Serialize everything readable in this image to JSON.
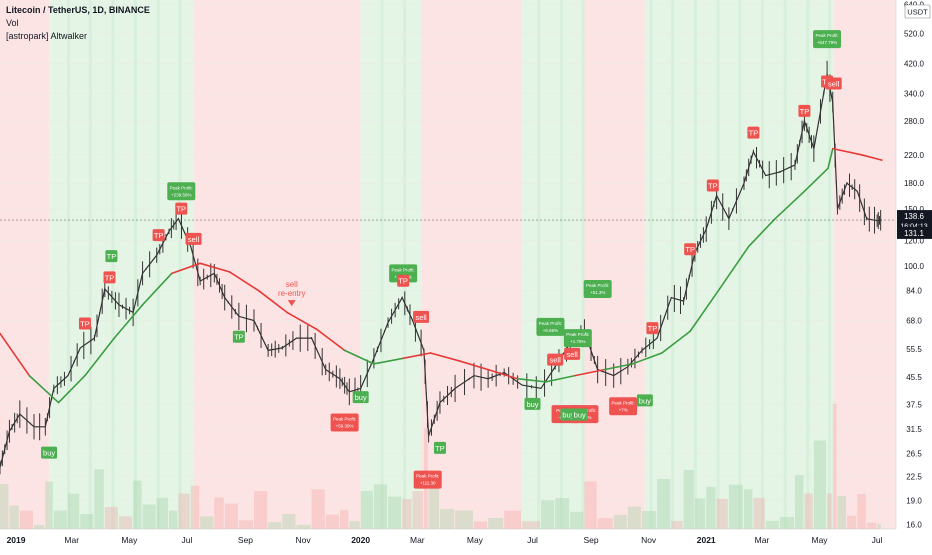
{
  "legend": {
    "symbol": "Litecoin / TetherUS, 1D, BINANCE",
    "indicator1": "Vol",
    "indicator2": "[astropark] Altwalker"
  },
  "price_scale": {
    "currency": "USDT",
    "top_label": "640.0",
    "current_price": "138.6",
    "countdown": "16:04:13",
    "secondary_price": "131.1"
  },
  "colors": {
    "background_bull": "#e4f5e6",
    "background_bear": "#fde4e4",
    "ma_bull": "#3a9e40",
    "ma_bear": "#e53935",
    "candles": "#333333",
    "label_green": "#4caf50",
    "label_red": "#ef5350"
  },
  "chart_data": {
    "type": "line",
    "title": "Litecoin / TetherUS, 1D, BINANCE",
    "y_scale": "log",
    "ylim": [
      15.5,
      660
    ],
    "y_ticks": [
      "640.0",
      "520.0",
      "420.0",
      "340.0",
      "280.0",
      "220.0",
      "180.0",
      "150.0",
      "120.0",
      "100.0",
      "84.0",
      "68.0",
      "55.5",
      "45.5",
      "37.5",
      "31.5",
      "26.5",
      "22.5",
      "19.0",
      "16.0"
    ],
    "x_ticks": [
      {
        "label": "2019",
        "date": "2019-01-01"
      },
      {
        "label": "Mar",
        "date": "2019-03-01"
      },
      {
        "label": "May",
        "date": "2019-05-01"
      },
      {
        "label": "Jul",
        "date": "2019-07-01"
      },
      {
        "label": "Sep",
        "date": "2019-09-01"
      },
      {
        "label": "Nov",
        "date": "2019-11-01"
      },
      {
        "label": "2020",
        "date": "2020-01-01"
      },
      {
        "label": "Mar",
        "date": "2020-03-01"
      },
      {
        "label": "May",
        "date": "2020-05-01"
      },
      {
        "label": "Jul",
        "date": "2020-07-01"
      },
      {
        "label": "Sep",
        "date": "2020-09-01"
      },
      {
        "label": "Nov",
        "date": "2020-11-01"
      },
      {
        "label": "2021",
        "date": "2021-01-01"
      },
      {
        "label": "Mar",
        "date": "2021-03-01"
      },
      {
        "label": "May",
        "date": "2021-05-01"
      },
      {
        "label": "Jul",
        "date": "2021-07-01"
      }
    ],
    "price_series": {
      "name": "Litecoin / TetherUS",
      "points": [
        [
          "2018-12-15",
          24
        ],
        [
          "2018-12-25",
          31
        ],
        [
          "2019-01-05",
          35
        ],
        [
          "2019-01-20",
          32
        ],
        [
          "2019-02-01",
          32
        ],
        [
          "2019-02-10",
          42
        ],
        [
          "2019-02-25",
          46
        ],
        [
          "2019-03-10",
          56
        ],
        [
          "2019-03-25",
          60
        ],
        [
          "2019-04-05",
          85
        ],
        [
          "2019-04-20",
          76
        ],
        [
          "2019-05-05",
          72
        ],
        [
          "2019-05-15",
          95
        ],
        [
          "2019-05-30",
          108
        ],
        [
          "2019-06-12",
          128
        ],
        [
          "2019-06-22",
          140
        ],
        [
          "2019-07-05",
          115
        ],
        [
          "2019-07-15",
          90
        ],
        [
          "2019-07-30",
          95
        ],
        [
          "2019-08-10",
          80
        ],
        [
          "2019-08-25",
          70
        ],
        [
          "2019-09-10",
          68
        ],
        [
          "2019-09-25",
          55
        ],
        [
          "2019-10-10",
          56
        ],
        [
          "2019-10-25",
          60
        ],
        [
          "2019-11-10",
          60
        ],
        [
          "2019-11-25",
          48
        ],
        [
          "2019-12-10",
          45
        ],
        [
          "2019-12-20",
          41
        ],
        [
          "2020-01-01",
          42
        ],
        [
          "2020-01-15",
          52
        ],
        [
          "2020-01-30",
          67
        ],
        [
          "2020-02-14",
          80
        ],
        [
          "2020-02-25",
          68
        ],
        [
          "2020-03-08",
          55
        ],
        [
          "2020-03-13",
          30
        ],
        [
          "2020-03-25",
          38
        ],
        [
          "2020-04-10",
          42
        ],
        [
          "2020-04-30",
          46
        ],
        [
          "2020-05-15",
          45
        ],
        [
          "2020-06-01",
          47
        ],
        [
          "2020-06-20",
          43
        ],
        [
          "2020-07-10",
          42
        ],
        [
          "2020-07-25",
          49
        ],
        [
          "2020-08-10",
          58
        ],
        [
          "2020-08-25",
          63
        ],
        [
          "2020-09-08",
          48
        ],
        [
          "2020-09-25",
          46
        ],
        [
          "2020-10-10",
          49
        ],
        [
          "2020-10-25",
          55
        ],
        [
          "2020-11-10",
          60
        ],
        [
          "2020-11-25",
          80
        ],
        [
          "2020-12-08",
          78
        ],
        [
          "2020-12-20",
          110
        ],
        [
          "2021-01-01",
          130
        ],
        [
          "2021-01-12",
          165
        ],
        [
          "2021-01-25",
          140
        ],
        [
          "2021-02-10",
          180
        ],
        [
          "2021-02-20",
          225
        ],
        [
          "2021-03-05",
          190
        ],
        [
          "2021-03-20",
          195
        ],
        [
          "2021-04-05",
          205
        ],
        [
          "2021-04-15",
          280
        ],
        [
          "2021-04-25",
          230
        ],
        [
          "2021-05-09",
          390
        ],
        [
          "2021-05-15",
          320
        ],
        [
          "2021-05-20",
          150
        ],
        [
          "2021-05-30",
          180
        ],
        [
          "2021-06-10",
          170
        ],
        [
          "2021-06-20",
          140
        ],
        [
          "2021-07-01",
          138
        ],
        [
          "2021-07-06",
          138.6
        ]
      ]
    },
    "ma_series": {
      "points": [
        [
          "2018-12-15",
          62
        ],
        [
          "2019-01-15",
          46
        ],
        [
          "2019-02-15",
          38
        ],
        [
          "2019-03-15",
          46
        ],
        [
          "2019-04-15",
          60
        ],
        [
          "2019-05-15",
          76
        ],
        [
          "2019-06-15",
          95
        ],
        [
          "2019-07-15",
          102
        ],
        [
          "2019-08-15",
          96
        ],
        [
          "2019-09-15",
          84
        ],
        [
          "2019-10-15",
          72
        ],
        [
          "2019-11-15",
          64
        ],
        [
          "2019-12-15",
          55
        ],
        [
          "2020-01-15",
          50
        ],
        [
          "2020-02-15",
          52
        ],
        [
          "2020-03-15",
          54
        ],
        [
          "2020-04-15",
          51
        ],
        [
          "2020-05-15",
          48
        ],
        [
          "2020-06-15",
          45
        ],
        [
          "2020-07-15",
          44
        ],
        [
          "2020-08-15",
          46
        ],
        [
          "2020-09-15",
          48
        ],
        [
          "2020-10-15",
          50
        ],
        [
          "2020-11-15",
          54
        ],
        [
          "2020-12-15",
          63
        ],
        [
          "2021-01-15",
          85
        ],
        [
          "2021-02-15",
          115
        ],
        [
          "2021-03-15",
          140
        ],
        [
          "2021-04-15",
          170
        ],
        [
          "2021-05-10",
          200
        ],
        [
          "2021-05-15",
          230
        ],
        [
          "2021-06-15",
          220
        ],
        [
          "2021-07-06",
          212
        ]
      ]
    },
    "signals": [
      {
        "date": "2019-02-05",
        "price": 29,
        "text": "buy",
        "color": "green",
        "side": "below"
      },
      {
        "date": "2019-03-15",
        "price": 62,
        "text": "TP",
        "color": "red",
        "side": "above"
      },
      {
        "date": "2019-04-10",
        "price": 86,
        "text": "TP",
        "color": "red",
        "side": "above"
      },
      {
        "date": "2019-04-12",
        "price": 100,
        "text": "TP",
        "color": "green",
        "side": "above"
      },
      {
        "date": "2019-06-01",
        "price": 116,
        "text": "TP",
        "color": "red",
        "side": "above"
      },
      {
        "date": "2019-06-25",
        "price": 140,
        "text": "TP",
        "color": "red",
        "side": "above"
      },
      {
        "date": "2019-07-08",
        "price": 113,
        "text": "sell",
        "color": "red",
        "side": "above"
      },
      {
        "date": "2019-08-25",
        "price": 66,
        "text": "TP",
        "color": "green",
        "side": "below"
      },
      {
        "date": "2020-01-01",
        "price": 43,
        "text": "buy",
        "color": "green",
        "side": "below"
      },
      {
        "date": "2020-02-15",
        "price": 84,
        "text": "TP",
        "color": "red",
        "side": "above"
      },
      {
        "date": "2020-03-05",
        "price": 65,
        "text": "sell",
        "color": "red",
        "side": "above"
      },
      {
        "date": "2020-03-25",
        "price": 30,
        "text": "TP",
        "color": "green",
        "side": "below"
      },
      {
        "date": "2020-07-01",
        "price": 41,
        "text": "buy",
        "color": "green",
        "side": "below"
      },
      {
        "date": "2020-07-25",
        "price": 48,
        "text": "sell",
        "color": "red",
        "side": "above"
      },
      {
        "date": "2020-08-08",
        "price": 38,
        "text": "buy",
        "color": "green",
        "side": "below"
      },
      {
        "date": "2020-08-20",
        "price": 38,
        "text": "buy",
        "color": "green",
        "side": "below"
      },
      {
        "date": "2020-08-12",
        "price": 50,
        "text": "sell",
        "color": "red",
        "side": "above"
      },
      {
        "date": "2020-10-28",
        "price": 42,
        "text": "buy",
        "color": "green",
        "side": "below"
      },
      {
        "date": "2020-11-05",
        "price": 60,
        "text": "TP",
        "color": "red",
        "side": "above"
      },
      {
        "date": "2020-12-15",
        "price": 105,
        "text": "TP",
        "color": "red",
        "side": "above"
      },
      {
        "date": "2021-01-08",
        "price": 165,
        "text": "TP",
        "color": "red",
        "side": "above"
      },
      {
        "date": "2021-02-20",
        "price": 240,
        "text": "TP",
        "color": "red",
        "side": "above"
      },
      {
        "date": "2021-04-15",
        "price": 280,
        "text": "TP",
        "color": "red",
        "side": "above"
      },
      {
        "date": "2021-05-09",
        "price": 345,
        "text": "TP",
        "color": "red",
        "side": "above"
      },
      {
        "date": "2021-05-16",
        "price": 340,
        "text": "sell",
        "color": "red",
        "side": "above"
      }
    ],
    "peak_labels": [
      {
        "date": "2019-06-25",
        "price": 170,
        "line1": "Peak Profit:",
        "line2": "+239.58%",
        "color": "green"
      },
      {
        "date": "2019-12-15",
        "price": 33,
        "line1": "Peak Profit:",
        "line2": "+59.39%",
        "color": "red"
      },
      {
        "date": "2020-02-15",
        "price": 95,
        "line1": "Peak Profit:",
        "line2": "+44.43%",
        "color": "green"
      },
      {
        "date": "2020-03-12",
        "price": 22,
        "line1": "Peak Profit:",
        "line2": "+111.30",
        "color": "red"
      },
      {
        "date": "2020-07-20",
        "price": 65,
        "line1": "Peak Profit:",
        "line2": "+6.65%",
        "color": "green"
      },
      {
        "date": "2020-08-05",
        "price": 35,
        "line1": "Peak Pro",
        "line2": "-6.16%",
        "color": "red"
      },
      {
        "date": "2020-08-18",
        "price": 60,
        "line1": "Peak Profit:",
        "line2": "+1.75%",
        "color": "green"
      },
      {
        "date": "2020-08-25",
        "price": 35,
        "line1": "Peak Profit:",
        "line2": "-7.65%",
        "color": "red"
      },
      {
        "date": "2020-09-08",
        "price": 85,
        "line1": "Peak Profit:",
        "line2": "+51.3%",
        "color": "green"
      },
      {
        "date": "2020-10-05",
        "price": 37,
        "line1": "Peak Profit:",
        "line2": "+7%",
        "color": "red"
      },
      {
        "date": "2021-05-09",
        "price": 500,
        "line1": "Peak Profit:",
        "line2": "+647.79%",
        "color": "green"
      }
    ],
    "reentry_label": {
      "date": "2019-10-20",
      "price": 78,
      "line1": "sell",
      "line2": "re-entry"
    }
  }
}
